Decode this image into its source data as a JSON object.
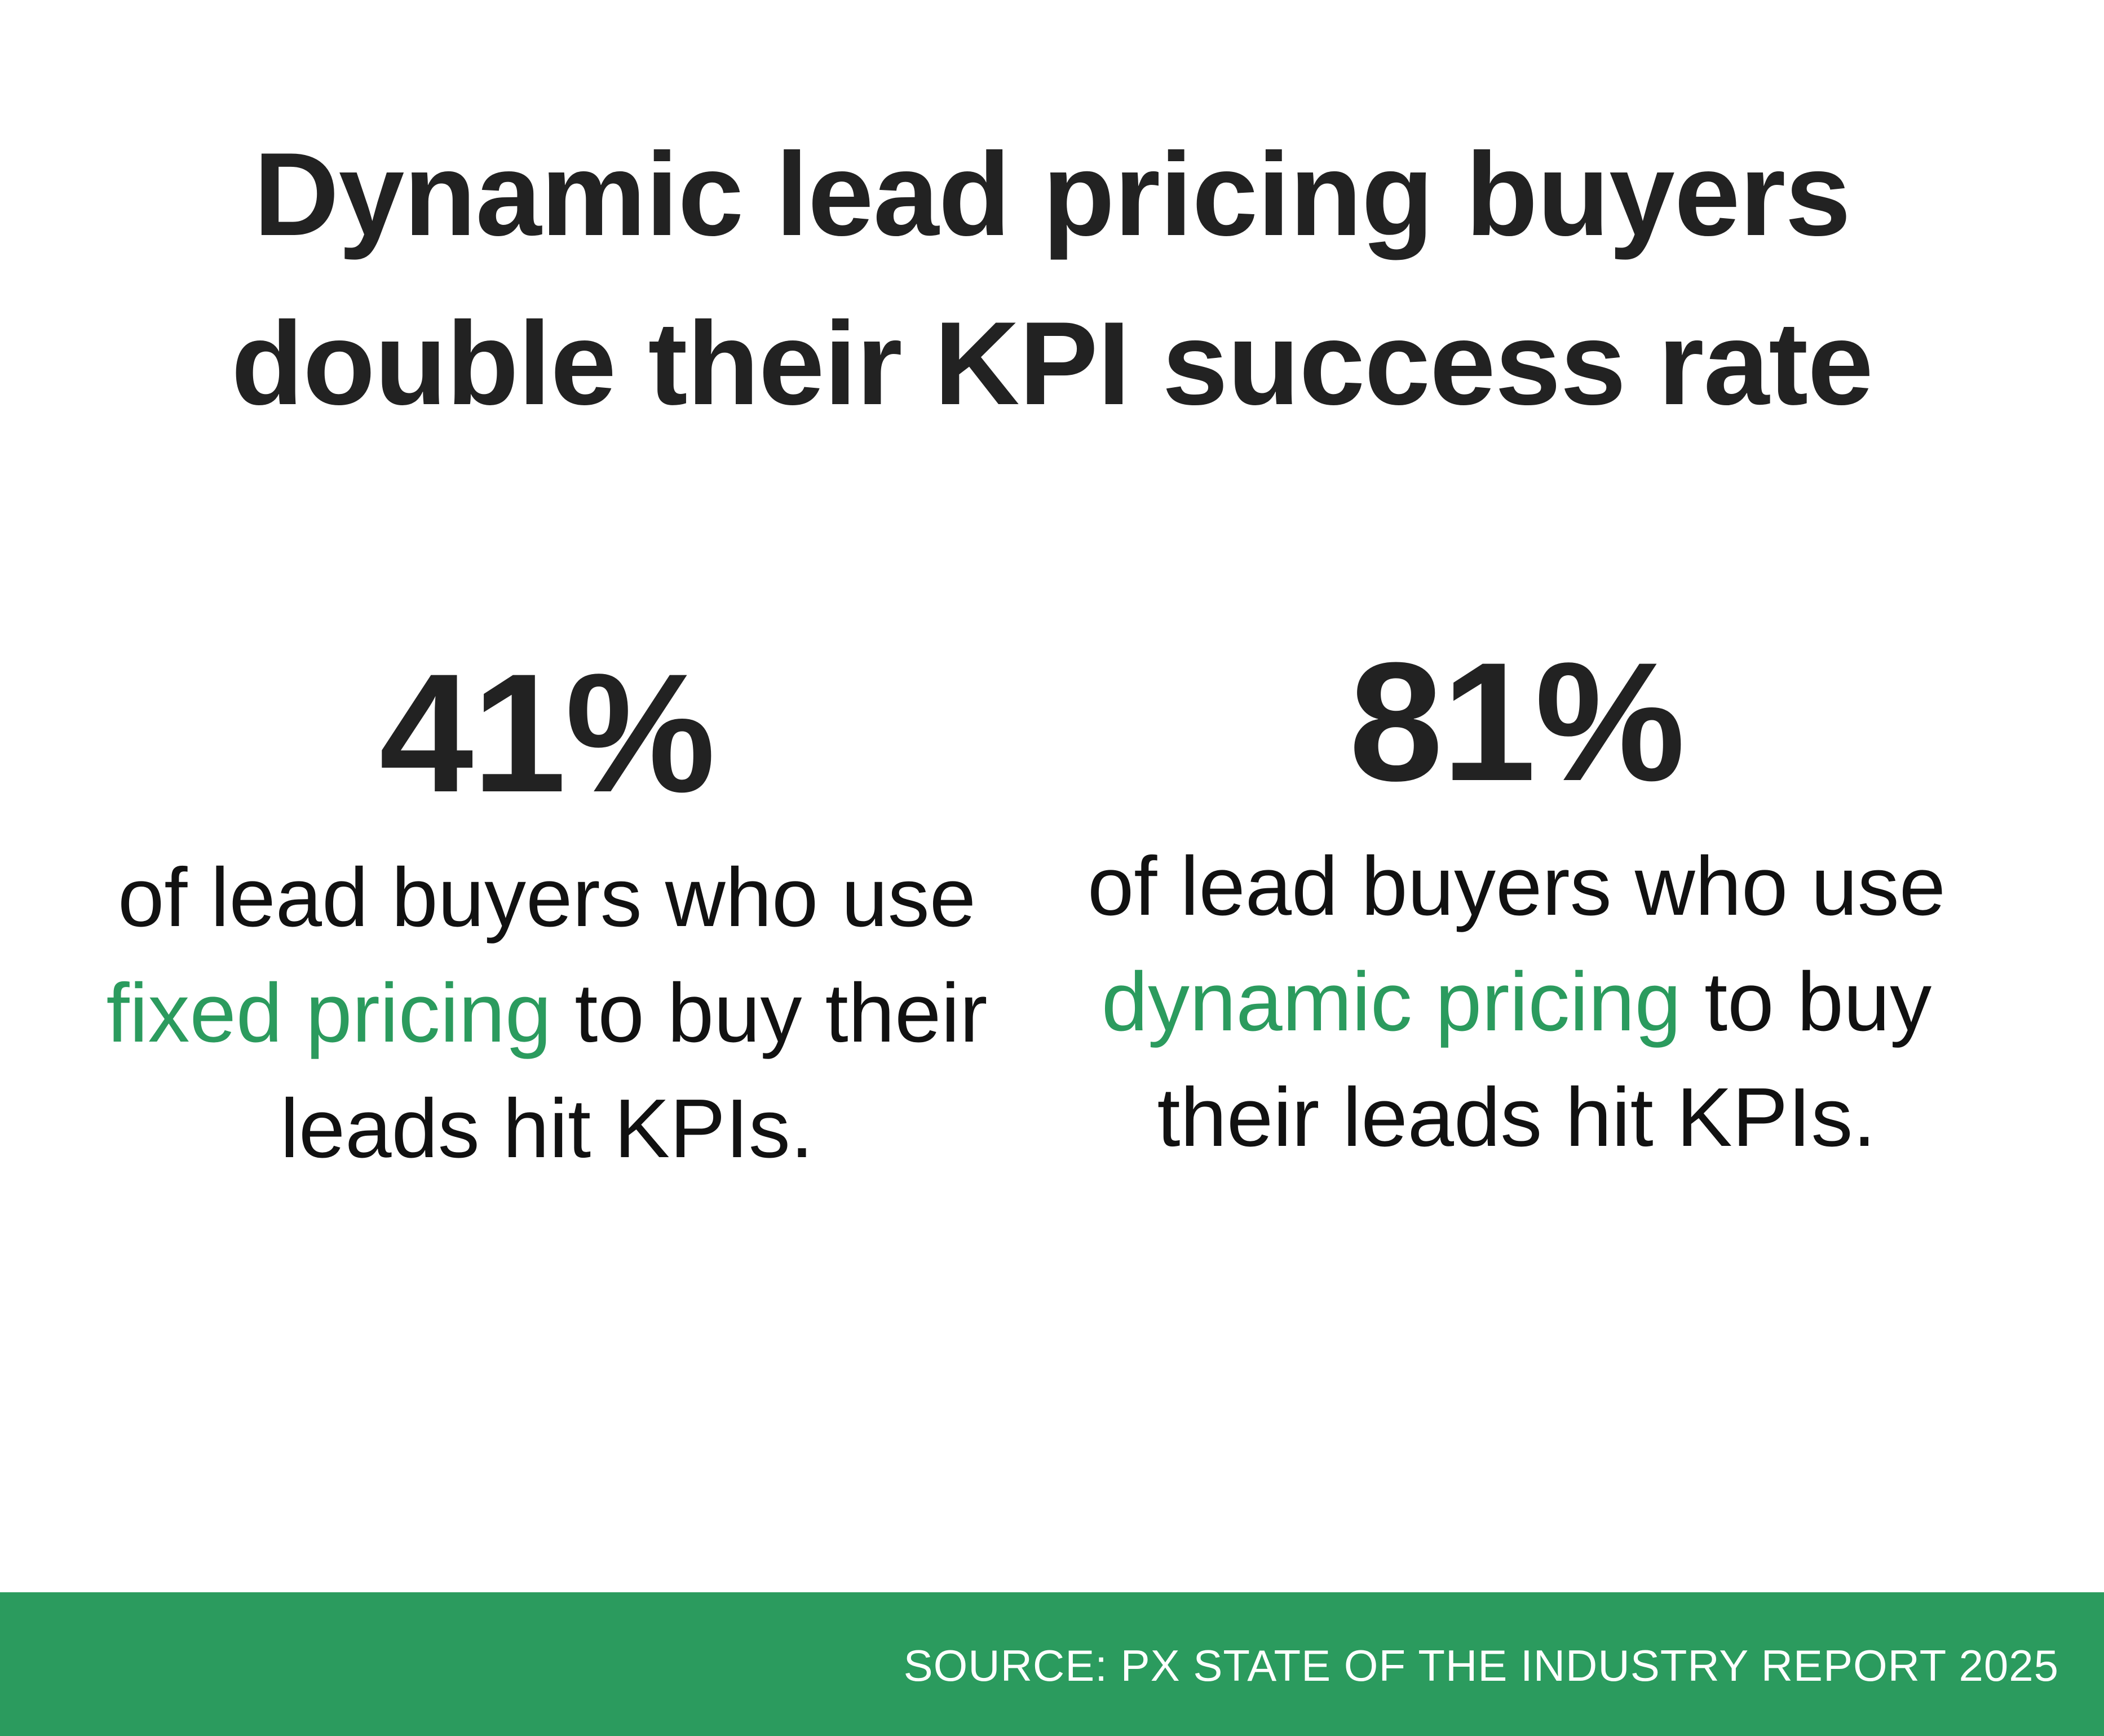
{
  "headline": {
    "line1": "Dynamic lead pricing buyers",
    "line2": "double their KPI success rate"
  },
  "stats": [
    {
      "percent": "41%",
      "desc_before": "of lead buyers who use",
      "highlight": "fixed pricing",
      "desc_after": "to buy their leads hit KPIs.",
      "value": 41
    },
    {
      "percent": "81%",
      "desc_before": "of lead buyers who use",
      "highlight": "dynamic pricing",
      "desc_after": "to buy their leads hit KPIs.",
      "value": 81
    }
  ],
  "footer": {
    "source": "SOURCE: PX STATE OF THE INDUSTRY REPORT 2025"
  },
  "colors": {
    "accent_green": "#2b9b5e",
    "text_dark": "#222222",
    "background": "#ffffff"
  }
}
